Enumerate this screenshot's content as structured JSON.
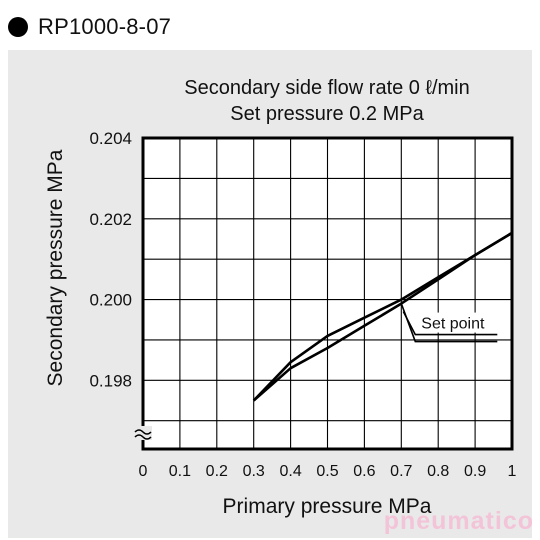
{
  "header": {
    "model": "RP1000-8-07"
  },
  "watermark": "pneumatico",
  "chart_data": {
    "type": "line",
    "title": "Secondary side flow rate 0 ℓ/min",
    "subtitle": "Set pressure 0.2 MPa",
    "xlabel": "Primary pressure MPa",
    "ylabel": "Secondary pressure MPa",
    "xlim": [
      0,
      1
    ],
    "ylim": [
      0.1963,
      0.204
    ],
    "grid": true,
    "axis_break": "y",
    "x_ticks": [
      "0",
      "0.1",
      "0.2",
      "0.3",
      "0.4",
      "0.5",
      "0.6",
      "0.7",
      "0.8",
      "0.9",
      "1"
    ],
    "y_ticks": [
      {
        "label": "0.198",
        "value": 0.198
      },
      {
        "label": "0.200",
        "value": 0.2
      },
      {
        "label": "0.202",
        "value": 0.202
      },
      {
        "label": "0.204",
        "value": 0.204
      }
    ],
    "series": [
      {
        "x": [
          0.3,
          0.4,
          0.5,
          0.6,
          0.7,
          0.8,
          0.9,
          1.0
        ],
        "y": [
          0.1975,
          0.19845,
          0.1991,
          0.19955,
          0.2,
          0.20055,
          0.2011,
          0.20165
        ]
      },
      {
        "x": [
          0.3,
          0.4,
          0.5,
          0.6,
          0.7,
          0.8,
          0.9,
          1.0
        ],
        "y": [
          0.1975,
          0.1983,
          0.1988,
          0.19935,
          0.1999,
          0.2005,
          0.2011,
          0.20165
        ]
      }
    ],
    "annotation": {
      "text": "Set point",
      "x": 0.7,
      "y": 0.2
    },
    "colors": {
      "line": "#000000",
      "grid": "#000000",
      "background": "#e9e9e9",
      "plot": "#ffffff"
    }
  }
}
